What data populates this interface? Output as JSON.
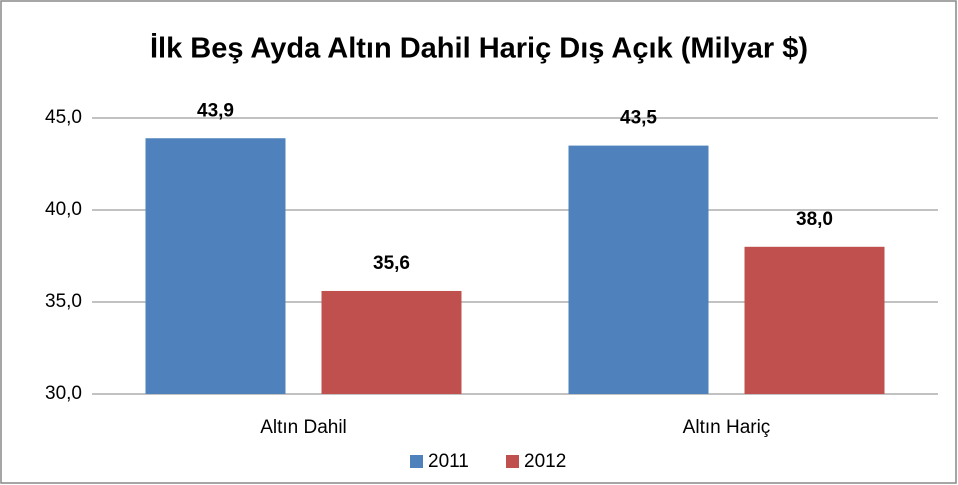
{
  "chart_data": {
    "type": "bar",
    "title": "İlk Beş Ayda Altın Dahil Hariç Dış Açık (Milyar $)",
    "categories": [
      "Altın Dahil",
      "Altın Hariç"
    ],
    "series": [
      {
        "name": "2011",
        "color": "#4f81bd",
        "values": [
          43.9,
          43.5
        ],
        "value_labels": [
          "43,9",
          "43,5"
        ]
      },
      {
        "name": "2012",
        "color": "#c0504d",
        "values": [
          35.6,
          38.0
        ],
        "value_labels": [
          "35,6",
          "38,0"
        ]
      }
    ],
    "ylim": [
      30,
      45
    ],
    "yticks": [
      {
        "value": 30,
        "label": "30,0"
      },
      {
        "value": 35,
        "label": "35,0"
      },
      {
        "value": 40,
        "label": "40,0"
      },
      {
        "value": 45,
        "label": "45,0"
      }
    ],
    "grid": true,
    "legend": "bottom"
  }
}
